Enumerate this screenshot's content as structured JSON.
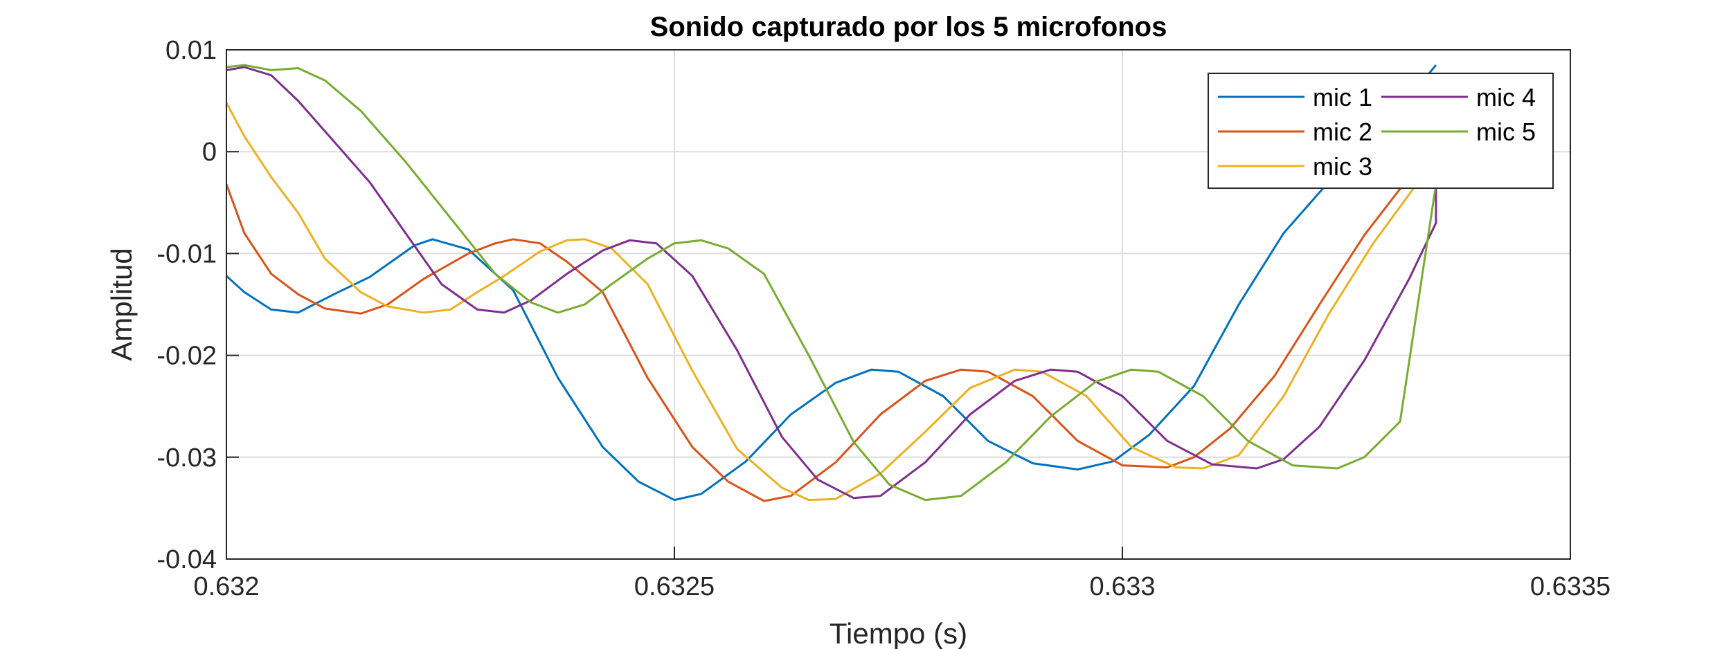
{
  "chart_data": {
    "type": "line",
    "title": "Sonido capturado por los 5 microfonos",
    "xlabel": "Tiempo (s)",
    "ylabel": "Amplitud",
    "xlim": [
      0.632,
      0.6335
    ],
    "ylim": [
      -0.04,
      0.01
    ],
    "xticks": [
      0.632,
      0.6325,
      0.633,
      0.6335
    ],
    "xtick_labels": [
      "0.632",
      "0.6325",
      "0.633",
      "0.6335"
    ],
    "yticks": [
      0.01,
      0,
      -0.01,
      -0.02,
      -0.03,
      -0.04
    ],
    "ytick_labels": [
      "0.01",
      "0",
      "-0.01",
      "-0.02",
      "-0.03",
      "-0.04"
    ],
    "grid": true,
    "legend_position": "top-right",
    "series": [
      {
        "name": "mic 1",
        "color": "#0072BD",
        "points": [
          [
            0.632,
            -0.0122
          ],
          [
            0.63202,
            -0.0138
          ],
          [
            0.63205,
            -0.0155
          ],
          [
            0.63208,
            -0.0158
          ],
          [
            0.63212,
            -0.014
          ],
          [
            0.63216,
            -0.0123
          ],
          [
            0.63221,
            -0.0092
          ],
          [
            0.63223,
            -0.0086
          ],
          [
            0.63227,
            -0.0096
          ],
          [
            0.63232,
            -0.0136
          ],
          [
            0.63237,
            -0.0222
          ],
          [
            0.63242,
            -0.029
          ],
          [
            0.63246,
            -0.0324
          ],
          [
            0.6325,
            -0.0342
          ],
          [
            0.63253,
            -0.0336
          ],
          [
            0.63258,
            -0.0304
          ],
          [
            0.63263,
            -0.0258
          ],
          [
            0.63268,
            -0.0227
          ],
          [
            0.63272,
            -0.0214
          ],
          [
            0.63275,
            -0.0216
          ],
          [
            0.6328,
            -0.024
          ],
          [
            0.63285,
            -0.0284
          ],
          [
            0.6329,
            -0.0306
          ],
          [
            0.63295,
            -0.0312
          ],
          [
            0.63299,
            -0.0304
          ],
          [
            0.63303,
            -0.0278
          ],
          [
            0.63308,
            -0.023
          ],
          [
            0.63313,
            -0.015
          ],
          [
            0.63318,
            -0.008
          ],
          [
            0.63323,
            -0.003
          ],
          [
            0.63327,
            0.0
          ],
          [
            0.63335,
            0.0085
          ]
        ]
      },
      {
        "name": "mic 2",
        "color": "#D95319",
        "points": [
          [
            0.632,
            -0.0032
          ],
          [
            0.63202,
            -0.008
          ],
          [
            0.63205,
            -0.012
          ],
          [
            0.63208,
            -0.014
          ],
          [
            0.63211,
            -0.0154
          ],
          [
            0.63215,
            -0.0159
          ],
          [
            0.63218,
            -0.015
          ],
          [
            0.63222,
            -0.0125
          ],
          [
            0.63227,
            -0.01
          ],
          [
            0.6323,
            -0.009
          ],
          [
            0.63232,
            -0.0086
          ],
          [
            0.63235,
            -0.009
          ],
          [
            0.63238,
            -0.0108
          ],
          [
            0.63242,
            -0.0138
          ],
          [
            0.63247,
            -0.0222
          ],
          [
            0.63252,
            -0.029
          ],
          [
            0.63256,
            -0.0324
          ],
          [
            0.6326,
            -0.0343
          ],
          [
            0.63263,
            -0.0338
          ],
          [
            0.63268,
            -0.0305
          ],
          [
            0.63273,
            -0.0258
          ],
          [
            0.63278,
            -0.0225
          ],
          [
            0.63282,
            -0.0214
          ],
          [
            0.63285,
            -0.0216
          ],
          [
            0.6329,
            -0.024
          ],
          [
            0.63295,
            -0.0284
          ],
          [
            0.633,
            -0.0308
          ],
          [
            0.63305,
            -0.031
          ],
          [
            0.63308,
            -0.03
          ],
          [
            0.63312,
            -0.0272
          ],
          [
            0.63317,
            -0.022
          ],
          [
            0.63322,
            -0.015
          ],
          [
            0.63327,
            -0.0082
          ],
          [
            0.63332,
            -0.0025
          ],
          [
            0.63335,
            0.0025
          ]
        ]
      },
      {
        "name": "mic 3",
        "color": "#EDB120",
        "points": [
          [
            0.632,
            0.0048
          ],
          [
            0.63202,
            0.0015
          ],
          [
            0.63205,
            -0.0025
          ],
          [
            0.63208,
            -0.006
          ],
          [
            0.63211,
            -0.0105
          ],
          [
            0.63215,
            -0.0138
          ],
          [
            0.63218,
            -0.0152
          ],
          [
            0.63222,
            -0.0158
          ],
          [
            0.63225,
            -0.0155
          ],
          [
            0.63228,
            -0.0138
          ],
          [
            0.63231,
            -0.0122
          ],
          [
            0.63235,
            -0.0098
          ],
          [
            0.63238,
            -0.0087
          ],
          [
            0.6324,
            -0.0086
          ],
          [
            0.63243,
            -0.0095
          ],
          [
            0.63247,
            -0.013
          ],
          [
            0.63252,
            -0.0215
          ],
          [
            0.63257,
            -0.0292
          ],
          [
            0.63262,
            -0.033
          ],
          [
            0.63265,
            -0.0342
          ],
          [
            0.63268,
            -0.0341
          ],
          [
            0.63273,
            -0.0316
          ],
          [
            0.63278,
            -0.0275
          ],
          [
            0.63283,
            -0.0232
          ],
          [
            0.63288,
            -0.0214
          ],
          [
            0.63291,
            -0.0216
          ],
          [
            0.63296,
            -0.024
          ],
          [
            0.63301,
            -0.029
          ],
          [
            0.63306,
            -0.031
          ],
          [
            0.63309,
            -0.0311
          ],
          [
            0.63313,
            -0.0298
          ],
          [
            0.63318,
            -0.024
          ],
          [
            0.63323,
            -0.016
          ],
          [
            0.63328,
            -0.009
          ],
          [
            0.63333,
            -0.003
          ],
          [
            0.63335,
            -0.0002
          ]
        ]
      },
      {
        "name": "mic 4",
        "color": "#7E2F8E",
        "points": [
          [
            0.632,
            0.008
          ],
          [
            0.63202,
            0.0083
          ],
          [
            0.63205,
            0.0075
          ],
          [
            0.63208,
            0.005
          ],
          [
            0.63212,
            0.001
          ],
          [
            0.63216,
            -0.003
          ],
          [
            0.6322,
            -0.008
          ],
          [
            0.63224,
            -0.013
          ],
          [
            0.63228,
            -0.0155
          ],
          [
            0.63231,
            -0.0158
          ],
          [
            0.63234,
            -0.0146
          ],
          [
            0.63238,
            -0.012
          ],
          [
            0.63242,
            -0.0097
          ],
          [
            0.63245,
            -0.0087
          ],
          [
            0.63248,
            -0.009
          ],
          [
            0.63252,
            -0.0122
          ],
          [
            0.63257,
            -0.0195
          ],
          [
            0.63262,
            -0.028
          ],
          [
            0.63266,
            -0.0322
          ],
          [
            0.6327,
            -0.034
          ],
          [
            0.63273,
            -0.0338
          ],
          [
            0.63278,
            -0.0305
          ],
          [
            0.63283,
            -0.0258
          ],
          [
            0.63288,
            -0.0225
          ],
          [
            0.63292,
            -0.0214
          ],
          [
            0.63295,
            -0.0216
          ],
          [
            0.633,
            -0.024
          ],
          [
            0.63305,
            -0.0284
          ],
          [
            0.6331,
            -0.0307
          ],
          [
            0.63315,
            -0.0311
          ],
          [
            0.63318,
            -0.0302
          ],
          [
            0.63322,
            -0.027
          ],
          [
            0.63327,
            -0.0205
          ],
          [
            0.63332,
            -0.0125
          ],
          [
            0.63335,
            -0.007
          ],
          [
            0.63335,
            -0.0012
          ]
        ]
      },
      {
        "name": "mic 5",
        "color": "#77AC30",
        "points": [
          [
            0.632,
            0.0083
          ],
          [
            0.63202,
            0.0085
          ],
          [
            0.63205,
            0.008
          ],
          [
            0.63208,
            0.0082
          ],
          [
            0.63211,
            0.007
          ],
          [
            0.63215,
            0.004
          ],
          [
            0.6322,
            -0.001
          ],
          [
            0.63225,
            -0.0065
          ],
          [
            0.6323,
            -0.012
          ],
          [
            0.63234,
            -0.0148
          ],
          [
            0.63237,
            -0.0158
          ],
          [
            0.6324,
            -0.015
          ],
          [
            0.63243,
            -0.013
          ],
          [
            0.63247,
            -0.0105
          ],
          [
            0.6325,
            -0.009
          ],
          [
            0.63253,
            -0.0087
          ],
          [
            0.63256,
            -0.0095
          ],
          [
            0.6326,
            -0.012
          ],
          [
            0.63265,
            -0.02
          ],
          [
            0.6327,
            -0.0285
          ],
          [
            0.63274,
            -0.0327
          ],
          [
            0.63278,
            -0.0342
          ],
          [
            0.63282,
            -0.0338
          ],
          [
            0.63287,
            -0.0305
          ],
          [
            0.63292,
            -0.026
          ],
          [
            0.63297,
            -0.0226
          ],
          [
            0.63301,
            -0.0214
          ],
          [
            0.63304,
            -0.0216
          ],
          [
            0.63309,
            -0.024
          ],
          [
            0.63314,
            -0.0284
          ],
          [
            0.63319,
            -0.0308
          ],
          [
            0.63324,
            -0.0311
          ],
          [
            0.63327,
            -0.03
          ],
          [
            0.63331,
            -0.0265
          ],
          [
            0.63335,
            -0.0032
          ]
        ]
      }
    ]
  }
}
